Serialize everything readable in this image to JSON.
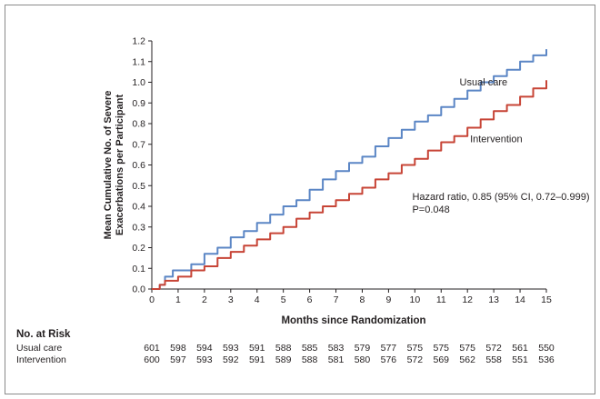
{
  "chart_data": {
    "type": "line",
    "title": "",
    "xlabel": "Months since Randomization",
    "ylabel": "Mean Cumulative No. of Severe Exacerbations per Participant",
    "ylabel_lines": [
      "Mean Cumulative No. of Severe",
      "Exacerbations per Participant"
    ],
    "xlim": [
      0,
      15
    ],
    "ylim": [
      0,
      1.2
    ],
    "xticks": [
      0,
      1,
      2,
      3,
      4,
      5,
      6,
      7,
      8,
      9,
      10,
      11,
      12,
      13,
      14,
      15
    ],
    "yticks": [
      0.0,
      0.1,
      0.2,
      0.3,
      0.4,
      0.5,
      0.6,
      0.7,
      0.8,
      0.9,
      1.0,
      1.1,
      1.2
    ],
    "ytick_labels": [
      "0.0",
      "0.1",
      "0.2",
      "0.3",
      "0.4",
      "0.5",
      "0.6",
      "0.7",
      "0.8",
      "0.9",
      "1.0",
      "1.1",
      "1.2"
    ],
    "series": [
      {
        "name": "Usual care",
        "color": "#5b86c5",
        "x": [
          0,
          0.3,
          0.5,
          0.8,
          1,
          1.5,
          2,
          2.5,
          3,
          3.5,
          4,
          4.5,
          5,
          5.5,
          6,
          6.5,
          7,
          7.5,
          8,
          8.5,
          9,
          9.5,
          10,
          10.5,
          11,
          11.5,
          12,
          12.5,
          13,
          13.5,
          14,
          14.5,
          15
        ],
        "y": [
          0,
          0.02,
          0.06,
          0.09,
          0.09,
          0.12,
          0.17,
          0.2,
          0.25,
          0.28,
          0.32,
          0.36,
          0.4,
          0.43,
          0.48,
          0.53,
          0.57,
          0.61,
          0.64,
          0.69,
          0.73,
          0.77,
          0.81,
          0.84,
          0.88,
          0.92,
          0.96,
          1.0,
          1.03,
          1.06,
          1.1,
          1.13,
          1.16
        ]
      },
      {
        "name": "Intervention",
        "color": "#c74436",
        "x": [
          0,
          0.3,
          0.5,
          1,
          1.5,
          2,
          2.5,
          3,
          3.5,
          4,
          4.5,
          5,
          5.5,
          6,
          6.5,
          7,
          7.5,
          8,
          8.5,
          9,
          9.5,
          10,
          10.5,
          11,
          11.5,
          12,
          12.5,
          13,
          13.5,
          14,
          14.5,
          15
        ],
        "y": [
          0,
          0.02,
          0.04,
          0.06,
          0.09,
          0.11,
          0.15,
          0.18,
          0.21,
          0.24,
          0.27,
          0.3,
          0.34,
          0.37,
          0.4,
          0.43,
          0.46,
          0.49,
          0.53,
          0.56,
          0.6,
          0.63,
          0.67,
          0.71,
          0.74,
          0.78,
          0.82,
          0.86,
          0.89,
          0.93,
          0.97,
          1.01
        ]
      }
    ],
    "annotations": [
      {
        "text": "Usual care",
        "x": 11.7,
        "y": 0.985
      },
      {
        "text": "Intervention",
        "x": 12.1,
        "y": 0.71
      },
      {
        "text": "Hazard ratio, 0.85 (95% CI, 0.72–0.999)",
        "x": 9.9,
        "y": 0.43
      },
      {
        "text": "P=0.048",
        "x": 9.9,
        "y": 0.37
      }
    ]
  },
  "risk_table": {
    "title": "No. at Risk",
    "rows": [
      {
        "label": "Usual care",
        "values": [
          "601",
          "598",
          "594",
          "593",
          "591",
          "588",
          "585",
          "583",
          "579",
          "577",
          "575",
          "575",
          "575",
          "572",
          "561",
          "550"
        ]
      },
      {
        "label": "Intervention",
        "values": [
          "600",
          "597",
          "593",
          "592",
          "591",
          "589",
          "588",
          "581",
          "580",
          "576",
          "572",
          "569",
          "562",
          "558",
          "551",
          "536"
        ]
      }
    ]
  }
}
